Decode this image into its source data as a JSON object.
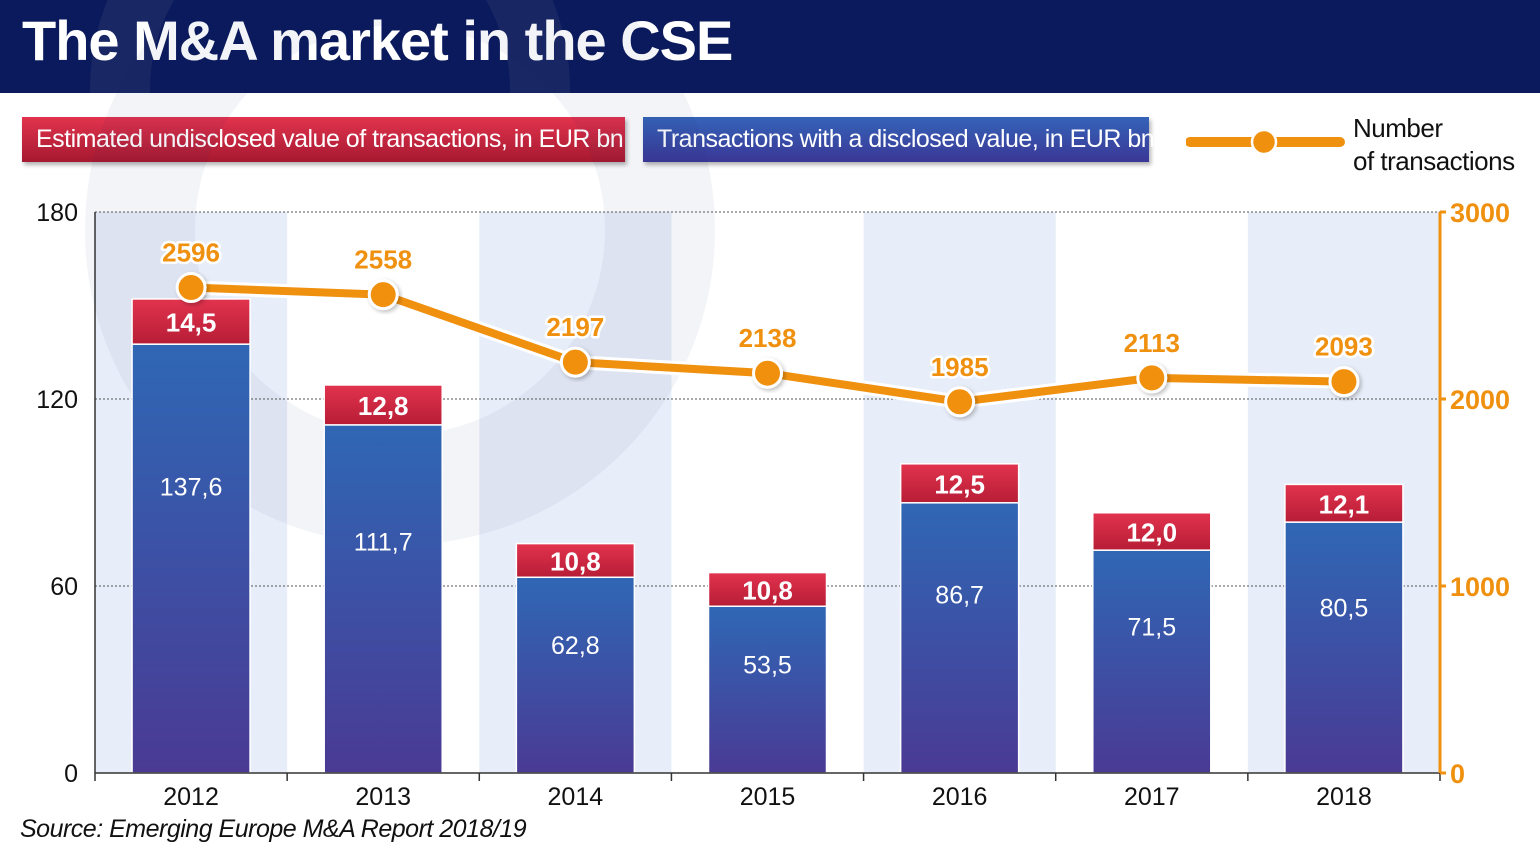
{
  "header": {
    "title": "The M&A market in the CSE"
  },
  "legend": {
    "undisclosed": "Estimated undisclosed value of transactions, in EUR bn",
    "disclosed": "Transactions with a disclosed value, in EUR bn",
    "line_label_1": "Number",
    "line_label_2": "of transactions"
  },
  "source": "Source: Emerging Europe M&A Report 2018/19",
  "colors": {
    "header": "#0b1a5c",
    "undisclosed": "#d22a45",
    "disclosed_top": "#2f67b5",
    "disclosed_bottom": "#4a3a94",
    "line": "#f0900f",
    "axis_right": "#f0900f",
    "band": "#e8eef9"
  },
  "chart_data": {
    "type": "bar",
    "stacked": true,
    "categories": [
      "2012",
      "2013",
      "2014",
      "2015",
      "2016",
      "2017",
      "2018"
    ],
    "series": [
      {
        "name": "Transactions with a disclosed value, in EUR bn",
        "values": [
          137.6,
          111.7,
          62.8,
          53.5,
          86.7,
          71.5,
          80.5
        ],
        "labels": [
          "137,6",
          "111,7",
          "62,8",
          "53,5",
          "86,7",
          "71,5",
          "80,5"
        ]
      },
      {
        "name": "Estimated undisclosed value of transactions, in EUR bn",
        "values": [
          14.5,
          12.8,
          10.8,
          10.8,
          12.5,
          12.0,
          12.1
        ],
        "labels": [
          "14,5",
          "12,8",
          "10,8",
          "10,8",
          "12,5",
          "12,0",
          "12,1"
        ]
      }
    ],
    "line": {
      "name": "Number of transactions",
      "values": [
        2596,
        2558,
        2197,
        2138,
        1985,
        2113,
        2093
      ]
    },
    "y_left": {
      "ticks": [
        0,
        60,
        120,
        180
      ],
      "range": [
        0,
        180
      ]
    },
    "y_right": {
      "ticks": [
        0,
        1000,
        2000,
        3000
      ],
      "range": [
        0,
        3000
      ]
    },
    "grid": true,
    "legend_position": "top"
  }
}
